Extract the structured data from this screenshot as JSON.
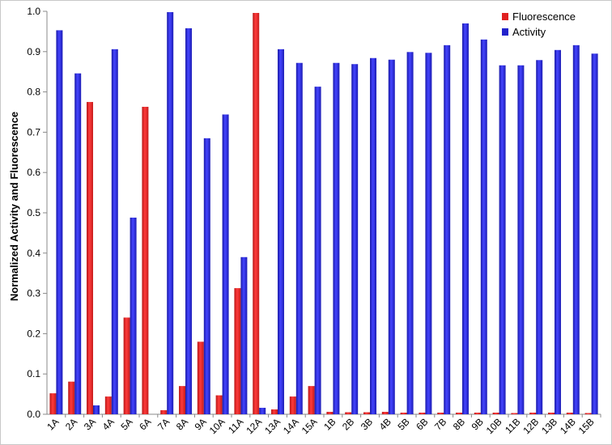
{
  "chart_data": {
    "type": "bar",
    "ylabel": "Normalized Activity and Fluorescence",
    "ylim": [
      0,
      1.0
    ],
    "yticks": [
      "0.0",
      "0.1",
      "0.2",
      "0.3",
      "0.4",
      "0.5",
      "0.6",
      "0.7",
      "0.8",
      "0.9",
      "1.0"
    ],
    "grid": false,
    "legend_position": "top-right",
    "categories": [
      "1A",
      "2A",
      "3A",
      "4A",
      "5A",
      "6A",
      "7A",
      "8A",
      "9A",
      "10A",
      "11A",
      "12A",
      "13A",
      "14A",
      "15A",
      "1B",
      "2B",
      "3B",
      "4B",
      "5B",
      "6B",
      "7B",
      "8B",
      "9B",
      "10B",
      "11B",
      "12B",
      "13B",
      "14B",
      "15B"
    ],
    "series": [
      {
        "name": "Fluorescence",
        "color": "#e02020",
        "values": [
          0.052,
          0.081,
          0.775,
          0.044,
          0.24,
          0.763,
          0.01,
          0.07,
          0.18,
          0.047,
          0.313,
          0.996,
          0.012,
          0.044,
          0.07,
          0.006,
          0.005,
          0.005,
          0.006,
          0.004,
          0.004,
          0.004,
          0.004,
          0.004,
          0.004,
          0.003,
          0.004,
          0.004,
          0.004,
          0.003
        ]
      },
      {
        "name": "Activity",
        "color": "#2222cc",
        "values": [
          0.953,
          0.846,
          0.022,
          0.906,
          0.488,
          0.0,
          0.998,
          0.958,
          0.685,
          0.744,
          0.39,
          0.016,
          0.906,
          0.872,
          0.813,
          0.872,
          0.869,
          0.884,
          0.88,
          0.899,
          0.897,
          0.916,
          0.97,
          0.93,
          0.866,
          0.866,
          0.879,
          0.904,
          0.916,
          0.895
        ]
      }
    ]
  }
}
